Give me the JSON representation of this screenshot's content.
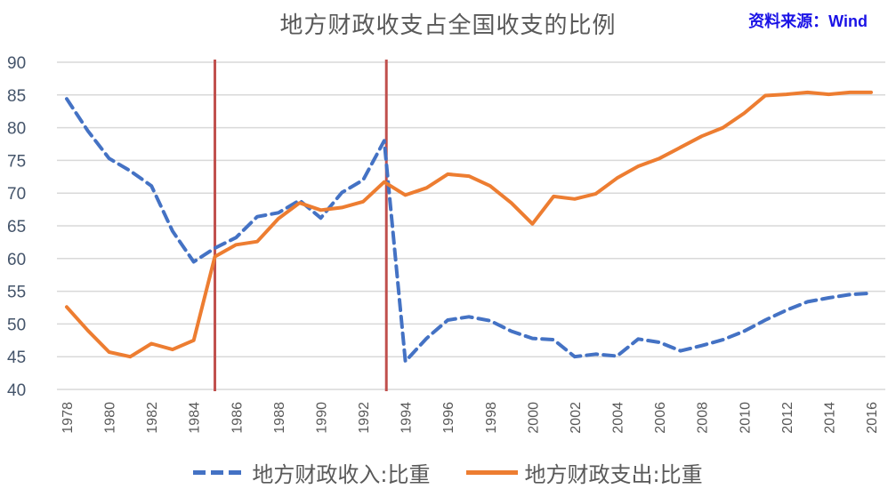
{
  "title": "地方财政收支占全国收支的比例",
  "source": "资料来源：Wind",
  "colors": {
    "revenue": "#4472c4",
    "expenditure": "#ed7d31",
    "marker_lines": "#c0504d",
    "gridline": "#d9d9d9",
    "source_text": "#1a12e6"
  },
  "legend": {
    "revenue_label": "地方财政收入:比重",
    "expenditure_label": "地方财政支出:比重"
  },
  "chart_data": {
    "type": "line",
    "title": "地方财政收支占全国收支的比例",
    "xlabel": "",
    "ylabel": "",
    "ylim": [
      40,
      90
    ],
    "yticks": [
      40,
      45,
      50,
      55,
      60,
      65,
      70,
      75,
      80,
      85,
      90
    ],
    "xtick_labels": [
      "1978",
      "1980",
      "1982",
      "1984",
      "1986",
      "1988",
      "1990",
      "1992",
      "1994",
      "1996",
      "1998",
      "2000",
      "2002",
      "2004",
      "2006",
      "2008",
      "2010",
      "2012",
      "2014",
      "2016"
    ],
    "grid": "horizontal",
    "legend_position": "bottom",
    "x": [
      1978,
      1979,
      1980,
      1981,
      1982,
      1983,
      1984,
      1985,
      1986,
      1987,
      1988,
      1989,
      1990,
      1991,
      1992,
      1993,
      1994,
      1995,
      1996,
      1997,
      1998,
      1999,
      2000,
      2001,
      2002,
      2003,
      2004,
      2005,
      2006,
      2007,
      2008,
      2009,
      2010,
      2011,
      2012,
      2013,
      2014,
      2015,
      2016
    ],
    "series": [
      {
        "name": "地方财政收入:比重",
        "style": "dashed",
        "values": [
          84.4,
          79.5,
          75.3,
          73.4,
          71.1,
          64.2,
          59.5,
          61.6,
          63.2,
          66.4,
          67.0,
          68.9,
          66.2,
          70.1,
          72.0,
          78.0,
          44.3,
          47.8,
          50.6,
          51.1,
          50.5,
          48.9,
          47.8,
          47.6,
          45.0,
          45.4,
          45.1,
          47.7,
          47.2,
          45.9,
          46.7,
          47.6,
          48.9,
          50.6,
          52.1,
          53.4,
          54.0,
          54.5,
          54.7
        ]
      },
      {
        "name": "地方财政支出:比重",
        "style": "solid",
        "values": [
          52.6,
          49.0,
          45.7,
          45.0,
          47.0,
          46.1,
          47.5,
          60.3,
          62.1,
          62.6,
          66.1,
          68.5,
          67.4,
          67.8,
          68.7,
          71.7,
          69.7,
          70.8,
          72.9,
          72.6,
          71.1,
          68.5,
          65.3,
          69.5,
          69.1,
          69.9,
          72.3,
          74.1,
          75.3,
          77.0,
          78.7,
          80.0,
          82.2,
          84.9,
          85.1,
          85.4,
          85.1,
          85.4,
          85.4
        ]
      }
    ],
    "annotations": [
      {
        "type": "vertical_line",
        "x": 1985,
        "color": "#c0504d"
      },
      {
        "type": "vertical_line",
        "x": 1993.1,
        "color": "#c0504d"
      }
    ]
  }
}
